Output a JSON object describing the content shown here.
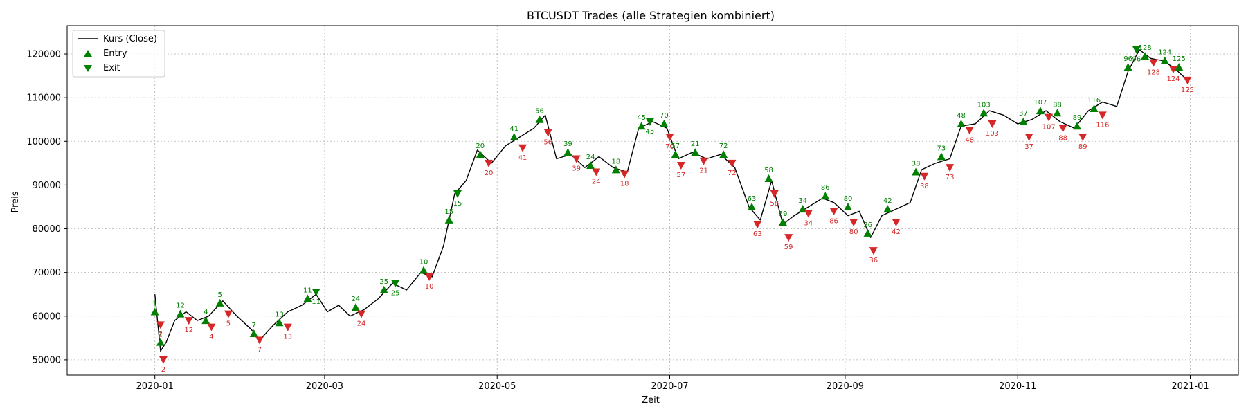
{
  "chart_data": {
    "type": "line",
    "title": "BTCUSDT Trades (alle Strategien kombiniert)",
    "xlabel": "Zeit",
    "ylabel": "Preis",
    "xlim": [
      "2019-12-01",
      "2021-01-18"
    ],
    "ylim": [
      46500,
      126500
    ],
    "grid": true,
    "legend_position": "top-left",
    "x_ticks": [
      "2020-01",
      "2020-03",
      "2020-05",
      "2020-07",
      "2020-09",
      "2020-11",
      "2021-01"
    ],
    "y_ticks": [
      50000,
      60000,
      70000,
      80000,
      90000,
      100000,
      110000,
      120000
    ],
    "legend": [
      {
        "label": "Kurs (Close)",
        "marker": "line",
        "color": "#000000"
      },
      {
        "label": "Entry",
        "marker": "triangle-up",
        "color": "#008000"
      },
      {
        "label": "Exit",
        "marker": "triangle-down",
        "color": "#008000"
      }
    ],
    "colors": {
      "price": "#000000",
      "entry": "#008000",
      "exit_profit": "#008000",
      "exit_loss": "#d62728",
      "label_profit": "#008000",
      "label_loss": "#d62728"
    },
    "series": [
      {
        "name": "Kurs (Close)",
        "points": [
          [
            "2020-01-01",
            65000
          ],
          [
            "2020-01-03",
            52000
          ],
          [
            "2020-01-05",
            54000
          ],
          [
            "2020-01-08",
            59000
          ],
          [
            "2020-01-12",
            61000
          ],
          [
            "2020-01-16",
            59000
          ],
          [
            "2020-01-20",
            60000
          ],
          [
            "2020-01-25",
            63500
          ],
          [
            "2020-01-30",
            60000
          ],
          [
            "2020-02-04",
            57000
          ],
          [
            "2020-02-07",
            54500
          ],
          [
            "2020-02-12",
            58000
          ],
          [
            "2020-02-17",
            61000
          ],
          [
            "2020-02-22",
            62500
          ],
          [
            "2020-02-27",
            65000
          ],
          [
            "2020-03-02",
            61000
          ],
          [
            "2020-03-06",
            62500
          ],
          [
            "2020-03-10",
            60000
          ],
          [
            "2020-03-15",
            61500
          ],
          [
            "2020-03-20",
            64000
          ],
          [
            "2020-03-25",
            67500
          ],
          [
            "2020-03-30",
            66000
          ],
          [
            "2020-04-04",
            70000
          ],
          [
            "2020-04-08",
            69000
          ],
          [
            "2020-04-12",
            76000
          ],
          [
            "2020-04-16",
            88000
          ],
          [
            "2020-04-20",
            91000
          ],
          [
            "2020-04-24",
            98000
          ],
          [
            "2020-04-29",
            95000
          ],
          [
            "2020-05-04",
            99000
          ],
          [
            "2020-05-09",
            101000
          ],
          [
            "2020-05-14",
            103000
          ],
          [
            "2020-05-18",
            106000
          ],
          [
            "2020-05-22",
            96000
          ],
          [
            "2020-05-27",
            97000
          ],
          [
            "2020-06-01",
            94000
          ],
          [
            "2020-06-06",
            96500
          ],
          [
            "2020-06-11",
            94000
          ],
          [
            "2020-06-16",
            93000
          ],
          [
            "2020-06-20",
            103000
          ],
          [
            "2020-06-25",
            104500
          ],
          [
            "2020-06-30",
            103000
          ],
          [
            "2020-07-04",
            96000
          ],
          [
            "2020-07-09",
            97500
          ],
          [
            "2020-07-14",
            96000
          ],
          [
            "2020-07-19",
            97000
          ],
          [
            "2020-07-24",
            94000
          ],
          [
            "2020-07-29",
            85000
          ],
          [
            "2020-08-02",
            82000
          ],
          [
            "2020-08-06",
            91000
          ],
          [
            "2020-08-10",
            81000
          ],
          [
            "2020-08-14",
            83000
          ],
          [
            "2020-08-19",
            85000
          ],
          [
            "2020-08-24",
            87000
          ],
          [
            "2020-08-28",
            86000
          ],
          [
            "2020-09-02",
            83000
          ],
          [
            "2020-09-06",
            84000
          ],
          [
            "2020-09-10",
            78000
          ],
          [
            "2020-09-14",
            83000
          ],
          [
            "2020-09-19",
            84500
          ],
          [
            "2020-09-24",
            86000
          ],
          [
            "2020-09-28",
            93500
          ],
          [
            "2020-10-03",
            95000
          ],
          [
            "2020-10-08",
            96000
          ],
          [
            "2020-10-12",
            103500
          ],
          [
            "2020-10-17",
            104000
          ],
          [
            "2020-10-22",
            107000
          ],
          [
            "2020-10-27",
            106000
          ],
          [
            "2020-11-01",
            104000
          ],
          [
            "2020-11-06",
            105000
          ],
          [
            "2020-11-11",
            107000
          ],
          [
            "2020-11-16",
            104500
          ],
          [
            "2020-11-21",
            103000
          ],
          [
            "2020-11-26",
            107000
          ],
          [
            "2020-12-01",
            109000
          ],
          [
            "2020-12-06",
            108000
          ],
          [
            "2020-12-10",
            116000
          ],
          [
            "2020-12-14",
            121000
          ],
          [
            "2020-12-18",
            119000
          ],
          [
            "2020-12-22",
            118500
          ],
          [
            "2020-12-26",
            117000
          ],
          [
            "2020-12-31",
            114000
          ]
        ]
      }
    ],
    "trades": [
      {
        "id": "1",
        "entry": [
          "2020-01-01",
          61000
        ],
        "exit": [
          "2020-01-03",
          58000
        ],
        "win": false
      },
      {
        "id": "2",
        "entry": [
          "2020-01-03",
          54000
        ],
        "exit": [
          "2020-01-04",
          50000
        ],
        "win": false
      },
      {
        "id": "12",
        "entry": [
          "2020-01-10",
          60500
        ],
        "exit": [
          "2020-01-13",
          59000
        ],
        "win": false
      },
      {
        "id": "4",
        "entry": [
          "2020-01-19",
          59000
        ],
        "exit": [
          "2020-01-21",
          57500
        ],
        "win": false
      },
      {
        "id": "5",
        "entry": [
          "2020-01-24",
          63000
        ],
        "exit": [
          "2020-01-27",
          60500
        ],
        "win": false
      },
      {
        "id": "7",
        "entry": [
          "2020-02-05",
          56000
        ],
        "exit": [
          "2020-02-07",
          54500
        ],
        "win": false
      },
      {
        "id": "13",
        "entry": [
          "2020-02-14",
          58500
        ],
        "exit": [
          "2020-02-17",
          57500
        ],
        "win": false
      },
      {
        "id": "11",
        "entry": [
          "2020-02-24",
          64000
        ],
        "exit": [
          "2020-02-27",
          65500
        ],
        "win": true
      },
      {
        "id": "24",
        "entry": [
          "2020-03-12",
          62000
        ],
        "exit": [
          "2020-03-14",
          60500
        ],
        "win": false
      },
      {
        "id": "25",
        "entry": [
          "2020-03-22",
          66000
        ],
        "exit": [
          "2020-03-26",
          67500
        ],
        "win": true
      },
      {
        "id": "10",
        "entry": [
          "2020-04-05",
          70500
        ],
        "exit": [
          "2020-04-07",
          69000
        ],
        "win": false
      },
      {
        "id": "15",
        "entry": [
          "2020-04-14",
          82000
        ],
        "exit": [
          "2020-04-17",
          88000
        ],
        "win": true
      },
      {
        "id": "20",
        "entry": [
          "2020-04-25",
          97000
        ],
        "exit": [
          "2020-04-28",
          95000
        ],
        "win": false
      },
      {
        "id": "41",
        "entry": [
          "2020-05-07",
          101000
        ],
        "exit": [
          "2020-05-10",
          98500
        ],
        "win": false
      },
      {
        "id": "56",
        "entry": [
          "2020-05-16",
          105000
        ],
        "exit": [
          "2020-05-19",
          102000
        ],
        "win": false
      },
      {
        "id": "39",
        "entry": [
          "2020-05-26",
          97500
        ],
        "exit": [
          "2020-05-29",
          96000
        ],
        "win": false
      },
      {
        "id": "24",
        "entry": [
          "2020-06-03",
          94500
        ],
        "exit": [
          "2020-06-05",
          93000
        ],
        "win": false
      },
      {
        "id": "18",
        "entry": [
          "2020-06-12",
          93500
        ],
        "exit": [
          "2020-06-15",
          92500
        ],
        "win": false
      },
      {
        "id": "45",
        "entry": [
          "2020-06-21",
          103500
        ],
        "exit": [
          "2020-06-24",
          104500
        ],
        "win": true
      },
      {
        "id": "70",
        "entry": [
          "2020-06-29",
          104000
        ],
        "exit": [
          "2020-07-01",
          101000
        ],
        "win": false
      },
      {
        "id": "57",
        "entry": [
          "2020-07-03",
          97000
        ],
        "exit": [
          "2020-07-05",
          94500
        ],
        "win": false
      },
      {
        "id": "21",
        "entry": [
          "2020-07-10",
          97500
        ],
        "exit": [
          "2020-07-13",
          95500
        ],
        "win": false
      },
      {
        "id": "72",
        "entry": [
          "2020-07-20",
          97000
        ],
        "exit": [
          "2020-07-23",
          95000
        ],
        "win": false
      },
      {
        "id": "63",
        "entry": [
          "2020-07-30",
          85000
        ],
        "exit": [
          "2020-08-01",
          81000
        ],
        "win": false
      },
      {
        "id": "58",
        "entry": [
          "2020-08-05",
          91500
        ],
        "exit": [
          "2020-08-07",
          88000
        ],
        "win": false
      },
      {
        "id": "59",
        "entry": [
          "2020-08-10",
          81500
        ],
        "exit": [
          "2020-08-12",
          78000
        ],
        "win": false
      },
      {
        "id": "34",
        "entry": [
          "2020-08-17",
          84500
        ],
        "exit": [
          "2020-08-19",
          83500
        ],
        "win": false
      },
      {
        "id": "86",
        "entry": [
          "2020-08-25",
          87500
        ],
        "exit": [
          "2020-08-28",
          84000
        ],
        "win": false
      },
      {
        "id": "80",
        "entry": [
          "2020-09-02",
          85000
        ],
        "exit": [
          "2020-09-04",
          81500
        ],
        "win": false
      },
      {
        "id": "36",
        "entry": [
          "2020-09-09",
          79000
        ],
        "exit": [
          "2020-09-11",
          75000
        ],
        "win": false
      },
      {
        "id": "42",
        "entry": [
          "2020-09-16",
          84500
        ],
        "exit": [
          "2020-09-19",
          81500
        ],
        "win": false
      },
      {
        "id": "38",
        "entry": [
          "2020-09-26",
          93000
        ],
        "exit": [
          "2020-09-29",
          92000
        ],
        "win": false
      },
      {
        "id": "73",
        "entry": [
          "2020-10-05",
          96500
        ],
        "exit": [
          "2020-10-08",
          94000
        ],
        "win": false
      },
      {
        "id": "48",
        "entry": [
          "2020-10-12",
          104000
        ],
        "exit": [
          "2020-10-15",
          102500
        ],
        "win": false
      },
      {
        "id": "103",
        "entry": [
          "2020-10-20",
          106500
        ],
        "exit": [
          "2020-10-23",
          104000
        ],
        "win": false
      },
      {
        "id": "37",
        "entry": [
          "2020-11-03",
          104500
        ],
        "exit": [
          "2020-11-05",
          101000
        ],
        "win": false
      },
      {
        "id": "107",
        "entry": [
          "2020-11-09",
          107000
        ],
        "exit": [
          "2020-11-12",
          105500
        ],
        "win": false
      },
      {
        "id": "88",
        "entry": [
          "2020-11-15",
          106500
        ],
        "exit": [
          "2020-11-17",
          103000
        ],
        "win": false
      },
      {
        "id": "89",
        "entry": [
          "2020-11-22",
          103500
        ],
        "exit": [
          "2020-11-24",
          101000
        ],
        "win": false
      },
      {
        "id": "116",
        "entry": [
          "2020-11-28",
          107500
        ],
        "exit": [
          "2020-12-01",
          106000
        ],
        "win": false
      },
      {
        "id": "96",
        "entry": [
          "2020-12-10",
          117000
        ],
        "exit": [
          "2020-12-13",
          121000
        ],
        "win": true
      },
      {
        "id": "128",
        "entry": [
          "2020-12-16",
          119500
        ],
        "exit": [
          "2020-12-19",
          118000
        ],
        "win": false
      },
      {
        "id": "124",
        "entry": [
          "2020-12-23",
          118500
        ],
        "exit": [
          "2020-12-26",
          116500
        ],
        "win": false
      },
      {
        "id": "125",
        "entry": [
          "2020-12-28",
          117000
        ],
        "exit": [
          "2020-12-31",
          114000
        ],
        "win": false
      }
    ]
  }
}
